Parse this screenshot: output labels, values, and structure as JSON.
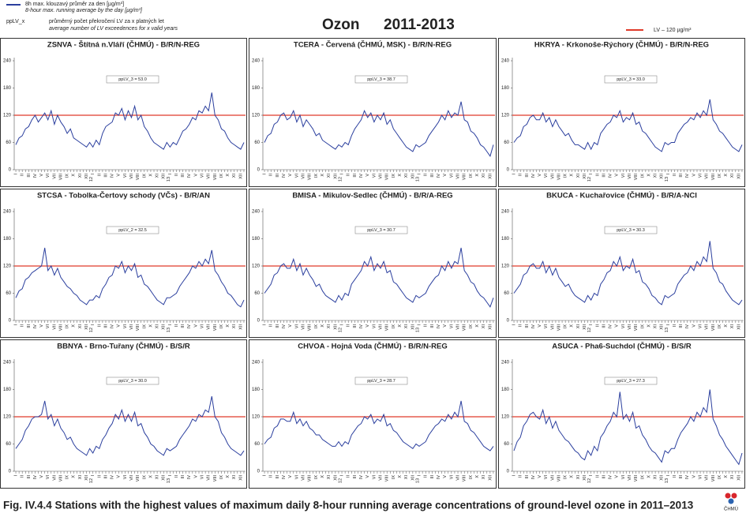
{
  "header": {
    "legend_line_text": "8h max. klouzavý průměr za den [µg/m³]",
    "legend_line_text_en": "8-hour max. running average by the day [µg/m³]",
    "legend_pplv_key": "ppLV_x",
    "legend_pplv_text": "průměrný počet překročení LV za x platných let",
    "legend_pplv_text_en": "average number of LV exceedences for x valid years",
    "title": "Ozon",
    "period": "2011-2013",
    "limit_legend": "LV – 120 µg/m³"
  },
  "shared": {
    "ylim": [
      0,
      240
    ],
    "yticks": [
      0,
      60,
      120,
      180,
      240
    ],
    "limit_value": 120,
    "limit_color": "#e03a2a",
    "categories": [
      "I",
      null,
      "II",
      null,
      "III",
      null,
      "IV",
      null,
      "V",
      null,
      "VI",
      null,
      "VII",
      null,
      "VIII",
      null,
      "IX",
      null,
      "X",
      null,
      "XI",
      null,
      "XII",
      null,
      "I",
      null,
      "II",
      null,
      "III",
      null,
      "IV",
      null,
      "V",
      null,
      "VI",
      null,
      "VII",
      null,
      "VIII",
      null,
      "IX",
      null,
      "X",
      null,
      "XI",
      null,
      "XII",
      null,
      "I",
      null,
      "II",
      null,
      "III",
      null,
      "IV",
      null,
      "V",
      null,
      "VI",
      null,
      "VII",
      null,
      "VIII",
      null,
      "IX",
      null,
      "X",
      null,
      "XI",
      null,
      "XII",
      null
    ],
    "year_labels": [
      "12",
      "13"
    ],
    "year_label_indices": [
      24,
      48
    ]
  },
  "chart_data": [
    {
      "type": "line",
      "title": "ZSNVA - Štítná n.Vláří (ČHMÚ) - B/R/N-REG",
      "annotation": "ppLV_3 = 53.0",
      "color": "#2b3f9e",
      "values": [
        55,
        70,
        75,
        90,
        95,
        110,
        120,
        105,
        115,
        125,
        110,
        130,
        100,
        120,
        105,
        95,
        80,
        90,
        70,
        65,
        60,
        55,
        50,
        60,
        50,
        65,
        55,
        80,
        95,
        100,
        105,
        125,
        120,
        135,
        110,
        130,
        115,
        140,
        110,
        120,
        95,
        85,
        70,
        60,
        55,
        50,
        45,
        60,
        50,
        60,
        55,
        70,
        85,
        90,
        100,
        115,
        110,
        130,
        125,
        140,
        130,
        170,
        120,
        110,
        90,
        85,
        70,
        60,
        55,
        50,
        45,
        60
      ]
    },
    {
      "type": "line",
      "title": "TCERA - Červená (ČHMÚ, MSK) - B/R/N-REG",
      "annotation": "ppLV_3 = 38.7",
      "color": "#2b3f9e",
      "values": [
        60,
        75,
        80,
        100,
        105,
        120,
        125,
        110,
        115,
        130,
        105,
        120,
        95,
        110,
        100,
        90,
        75,
        80,
        65,
        60,
        55,
        50,
        45,
        55,
        50,
        60,
        55,
        75,
        90,
        100,
        110,
        130,
        115,
        125,
        105,
        120,
        110,
        125,
        100,
        110,
        90,
        80,
        70,
        60,
        50,
        45,
        40,
        55,
        50,
        55,
        60,
        75,
        85,
        95,
        105,
        120,
        110,
        130,
        115,
        125,
        120,
        150,
        110,
        105,
        85,
        80,
        70,
        55,
        50,
        40,
        30,
        55
      ]
    },
    {
      "type": "line",
      "title": "HKRYA - Krkonoše-Rýchory (ČHMÚ) - B/R/N-REG",
      "annotation": "ppLV_3 = 33.0",
      "color": "#2b3f9e",
      "values": [
        60,
        70,
        75,
        95,
        100,
        115,
        120,
        110,
        110,
        125,
        105,
        115,
        95,
        110,
        95,
        85,
        75,
        80,
        65,
        55,
        55,
        50,
        45,
        60,
        45,
        60,
        55,
        80,
        90,
        100,
        105,
        120,
        115,
        130,
        105,
        115,
        110,
        125,
        100,
        105,
        85,
        80,
        70,
        60,
        50,
        45,
        40,
        60,
        55,
        60,
        60,
        80,
        90,
        100,
        105,
        115,
        110,
        125,
        115,
        130,
        120,
        155,
        110,
        100,
        85,
        80,
        70,
        60,
        50,
        45,
        40,
        55
      ]
    },
    {
      "type": "line",
      "title": "STCSA - Tobolka-Čertovy schody (VČs) - B/R/AN",
      "annotation": "ppLV_2 = 32.5",
      "color": "#2b3f9e",
      "values": [
        50,
        65,
        70,
        90,
        95,
        105,
        110,
        115,
        120,
        160,
        110,
        120,
        100,
        115,
        95,
        85,
        75,
        70,
        60,
        55,
        45,
        40,
        35,
        45,
        45,
        55,
        50,
        70,
        80,
        95,
        100,
        120,
        115,
        130,
        105,
        120,
        110,
        125,
        95,
        100,
        80,
        75,
        65,
        55,
        45,
        40,
        35,
        50,
        50,
        55,
        60,
        75,
        85,
        95,
        105,
        120,
        115,
        130,
        120,
        135,
        125,
        155,
        110,
        100,
        85,
        75,
        60,
        55,
        45,
        35,
        30,
        45
      ]
    },
    {
      "type": "line",
      "title": "BMISA - Mikulov-Sedlec (ČHMÚ) - B/R/A-REG",
      "annotation": "ppLV_3 = 30.7",
      "color": "#2b3f9e",
      "values": [
        60,
        70,
        80,
        100,
        105,
        120,
        125,
        115,
        115,
        135,
        110,
        125,
        100,
        115,
        100,
        90,
        75,
        80,
        65,
        55,
        50,
        45,
        40,
        55,
        45,
        60,
        55,
        80,
        90,
        100,
        110,
        130,
        120,
        140,
        110,
        125,
        115,
        130,
        105,
        110,
        85,
        80,
        70,
        60,
        50,
        45,
        40,
        55,
        50,
        55,
        60,
        75,
        85,
        95,
        100,
        120,
        110,
        130,
        115,
        130,
        125,
        160,
        110,
        100,
        85,
        80,
        65,
        55,
        50,
        40,
        30,
        50
      ]
    },
    {
      "type": "line",
      "title": "BKUCA - Kuchařovice (ČHMÚ) - B/R/A-NCI",
      "annotation": "ppLV_3 = 30.3",
      "color": "#2b3f9e",
      "values": [
        60,
        70,
        80,
        100,
        105,
        120,
        125,
        115,
        115,
        130,
        105,
        120,
        100,
        115,
        95,
        85,
        75,
        80,
        65,
        55,
        50,
        45,
        40,
        55,
        45,
        60,
        55,
        80,
        90,
        105,
        110,
        130,
        120,
        140,
        110,
        120,
        115,
        135,
        105,
        110,
        85,
        80,
        70,
        55,
        50,
        40,
        35,
        55,
        50,
        55,
        60,
        80,
        90,
        100,
        105,
        120,
        110,
        130,
        120,
        140,
        130,
        175,
        115,
        105,
        85,
        80,
        65,
        55,
        45,
        40,
        35,
        45
      ]
    },
    {
      "type": "line",
      "title": "BBNYA - Brno-Tuřany (ČHMÚ) - B/S/R",
      "annotation": "ppLV_3 = 30.0",
      "color": "#2b3f9e",
      "values": [
        50,
        60,
        70,
        90,
        100,
        115,
        120,
        120,
        125,
        155,
        115,
        125,
        100,
        115,
        95,
        85,
        70,
        75,
        60,
        50,
        45,
        40,
        35,
        50,
        40,
        55,
        50,
        70,
        80,
        95,
        105,
        125,
        115,
        135,
        110,
        125,
        110,
        130,
        100,
        105,
        85,
        75,
        60,
        55,
        45,
        40,
        35,
        50,
        45,
        50,
        55,
        70,
        80,
        90,
        100,
        115,
        110,
        125,
        120,
        135,
        130,
        165,
        120,
        110,
        85,
        75,
        60,
        50,
        45,
        40,
        35,
        45
      ]
    },
    {
      "type": "line",
      "title": "CHVOA - Hojná Voda (ČHMÚ) - B/R/N-REG",
      "annotation": "ppLV_3 = 28.7",
      "color": "#2b3f9e",
      "values": [
        60,
        70,
        75,
        95,
        100,
        115,
        115,
        110,
        110,
        130,
        105,
        115,
        100,
        110,
        95,
        90,
        80,
        80,
        70,
        65,
        60,
        55,
        55,
        65,
        55,
        65,
        60,
        80,
        90,
        100,
        105,
        120,
        115,
        125,
        105,
        115,
        110,
        125,
        100,
        105,
        90,
        85,
        75,
        65,
        60,
        55,
        50,
        60,
        55,
        60,
        65,
        80,
        90,
        100,
        105,
        115,
        110,
        125,
        115,
        130,
        120,
        155,
        110,
        105,
        90,
        85,
        75,
        65,
        55,
        50,
        45,
        55
      ]
    },
    {
      "type": "line",
      "title": "ASUCA - Pha6-Suchdol (ČHMÚ) - B/S/R",
      "annotation": "ppLV_3 = 27.3",
      "color": "#2b3f9e",
      "values": [
        45,
        65,
        75,
        100,
        110,
        125,
        130,
        120,
        115,
        135,
        105,
        120,
        95,
        110,
        90,
        80,
        70,
        65,
        55,
        45,
        40,
        30,
        25,
        45,
        35,
        55,
        45,
        75,
        85,
        100,
        110,
        130,
        120,
        175,
        115,
        125,
        110,
        130,
        95,
        100,
        80,
        70,
        55,
        45,
        40,
        30,
        20,
        45,
        40,
        50,
        50,
        70,
        85,
        95,
        105,
        120,
        110,
        130,
        120,
        140,
        130,
        180,
        115,
        100,
        80,
        70,
        55,
        45,
        35,
        25,
        15,
        40
      ]
    }
  ],
  "caption": "Fig. IV.4.4  Stations with the highest values of maximum daily 8-hour running average concentrations of ground-level ozone in 2011–2013",
  "logo_text": "ČHMÚ"
}
